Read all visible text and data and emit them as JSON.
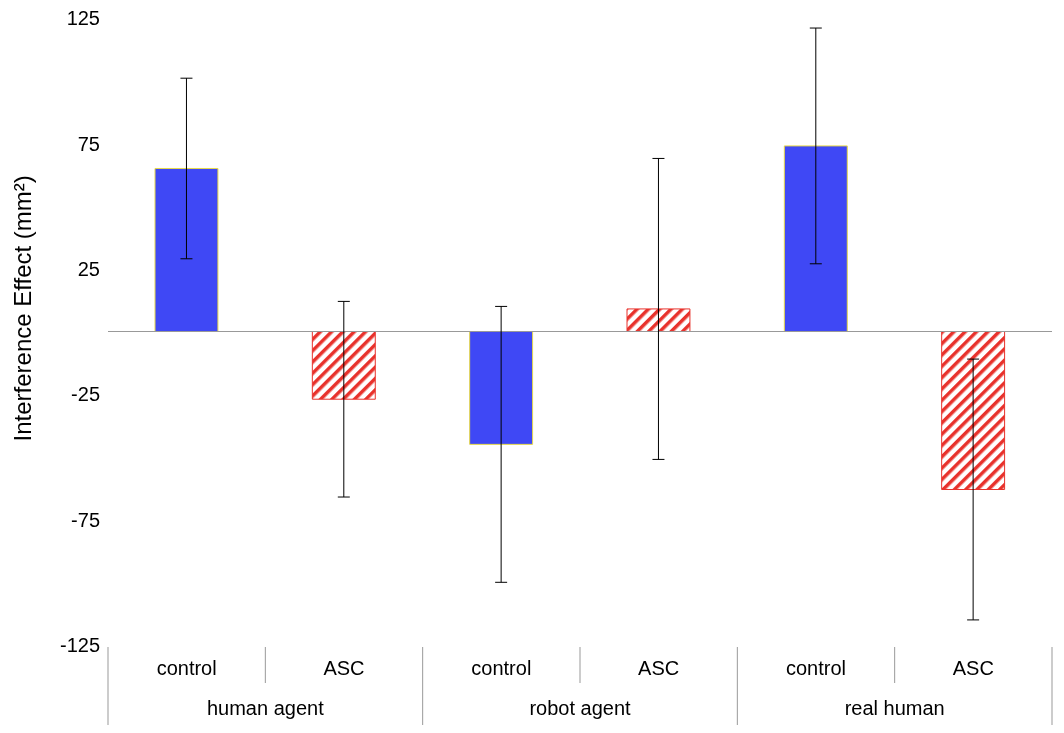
{
  "chart_data": {
    "type": "bar",
    "ylabel": "Interference Effect (mm²)",
    "categories": [
      "control",
      "ASC",
      "control",
      "ASC",
      "control",
      "ASC"
    ],
    "values": [
      65,
      -27,
      -45,
      9,
      74,
      -63
    ],
    "errors": [
      36,
      39,
      55,
      60,
      47,
      52
    ],
    "colors": [
      "#3f48f5",
      "#e8322c",
      "#3f48f5",
      "#e8322c",
      "#3f48f5",
      "#e8322c"
    ],
    "annotations": [
      "human agent",
      "robot agent",
      "real human"
    ],
    "ylim": [
      -125,
      125
    ],
    "yticks": [
      -125,
      -75,
      -25,
      25,
      75,
      125
    ],
    "grid": false,
    "legend": false
  }
}
